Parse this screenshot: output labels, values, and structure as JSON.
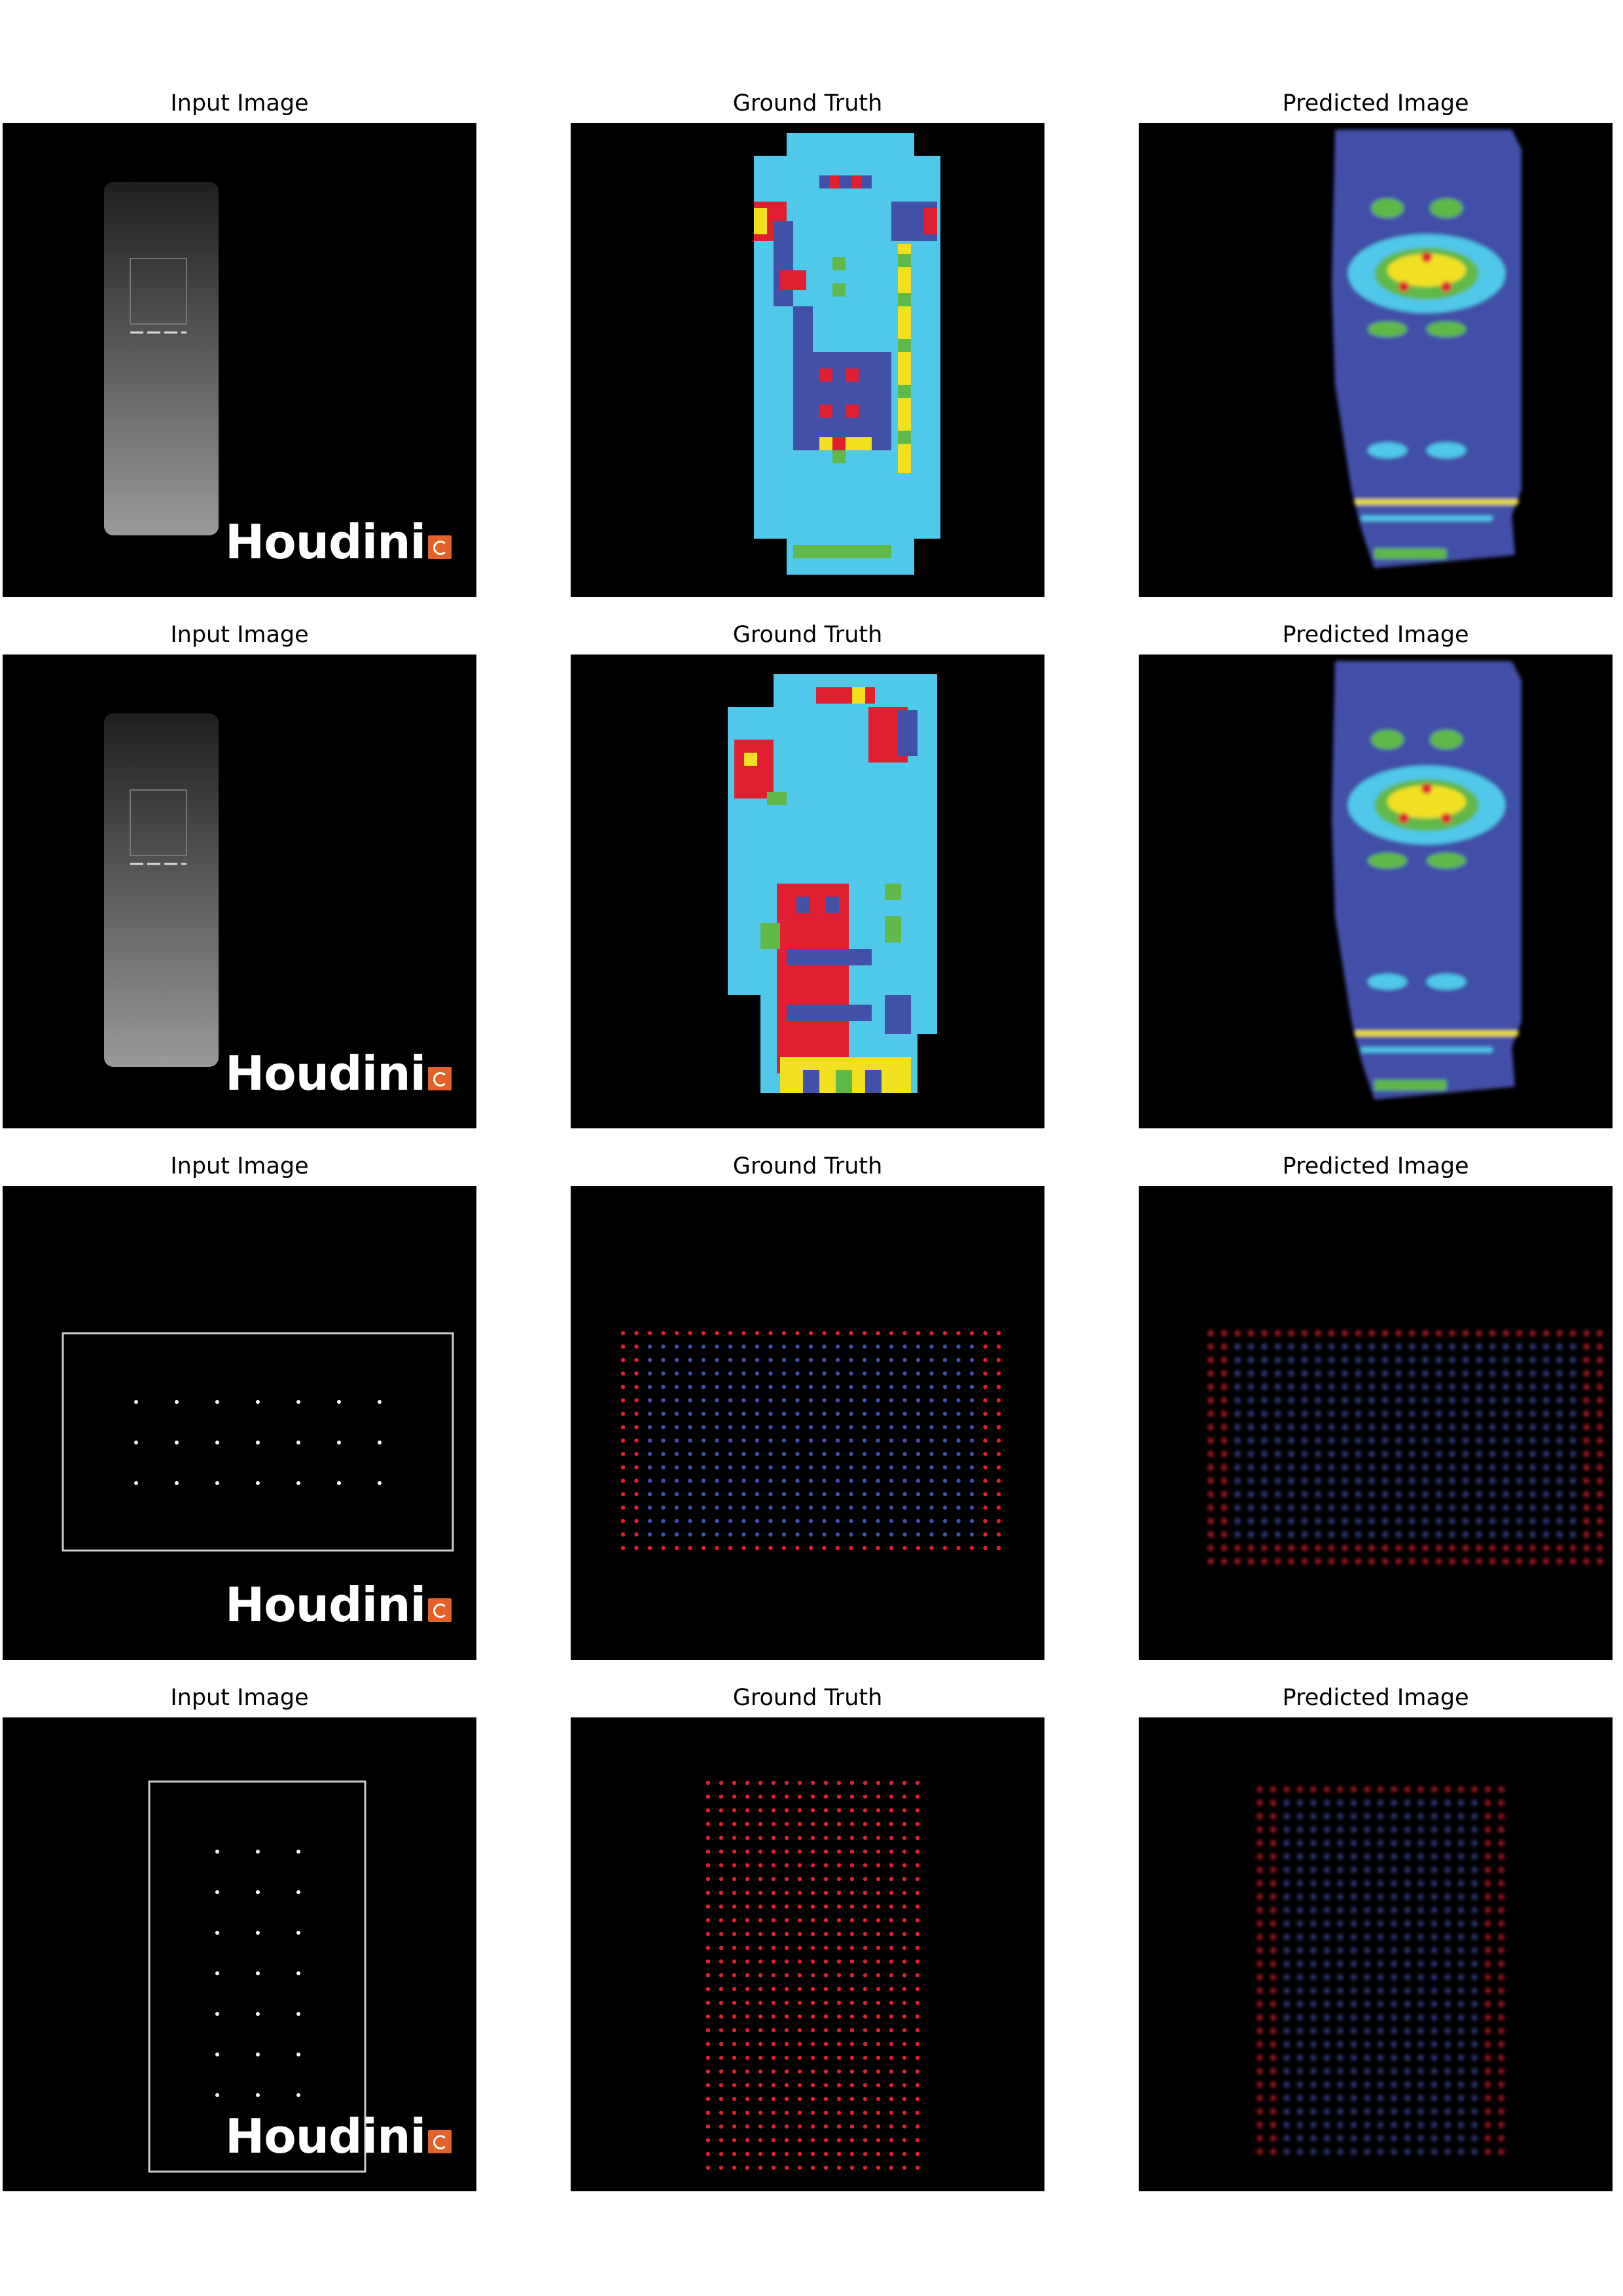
{
  "rows": [
    {
      "titles": [
        "Input Image",
        "Ground Truth",
        "Predicted Image"
      ],
      "logo_text": "Houdini"
    },
    {
      "titles": [
        "Input Image",
        "Ground Truth",
        "Predicted Image"
      ],
      "logo_text": "Houdini"
    },
    {
      "titles": [
        "Input Image",
        "Ground Truth",
        "Predicted Image"
      ],
      "logo_text": "Houdini"
    },
    {
      "titles": [
        "Input Image",
        "Ground Truth",
        "Predicted Image"
      ],
      "logo_text": "Houdini"
    }
  ],
  "colors": {
    "background": "#000000",
    "light_blue": "#4fc8ea",
    "dark_blue": "#4350a8",
    "red": "#e02030",
    "yellow": "#f0e020",
    "green": "#60b848",
    "logo_accent": "#e2622a"
  }
}
